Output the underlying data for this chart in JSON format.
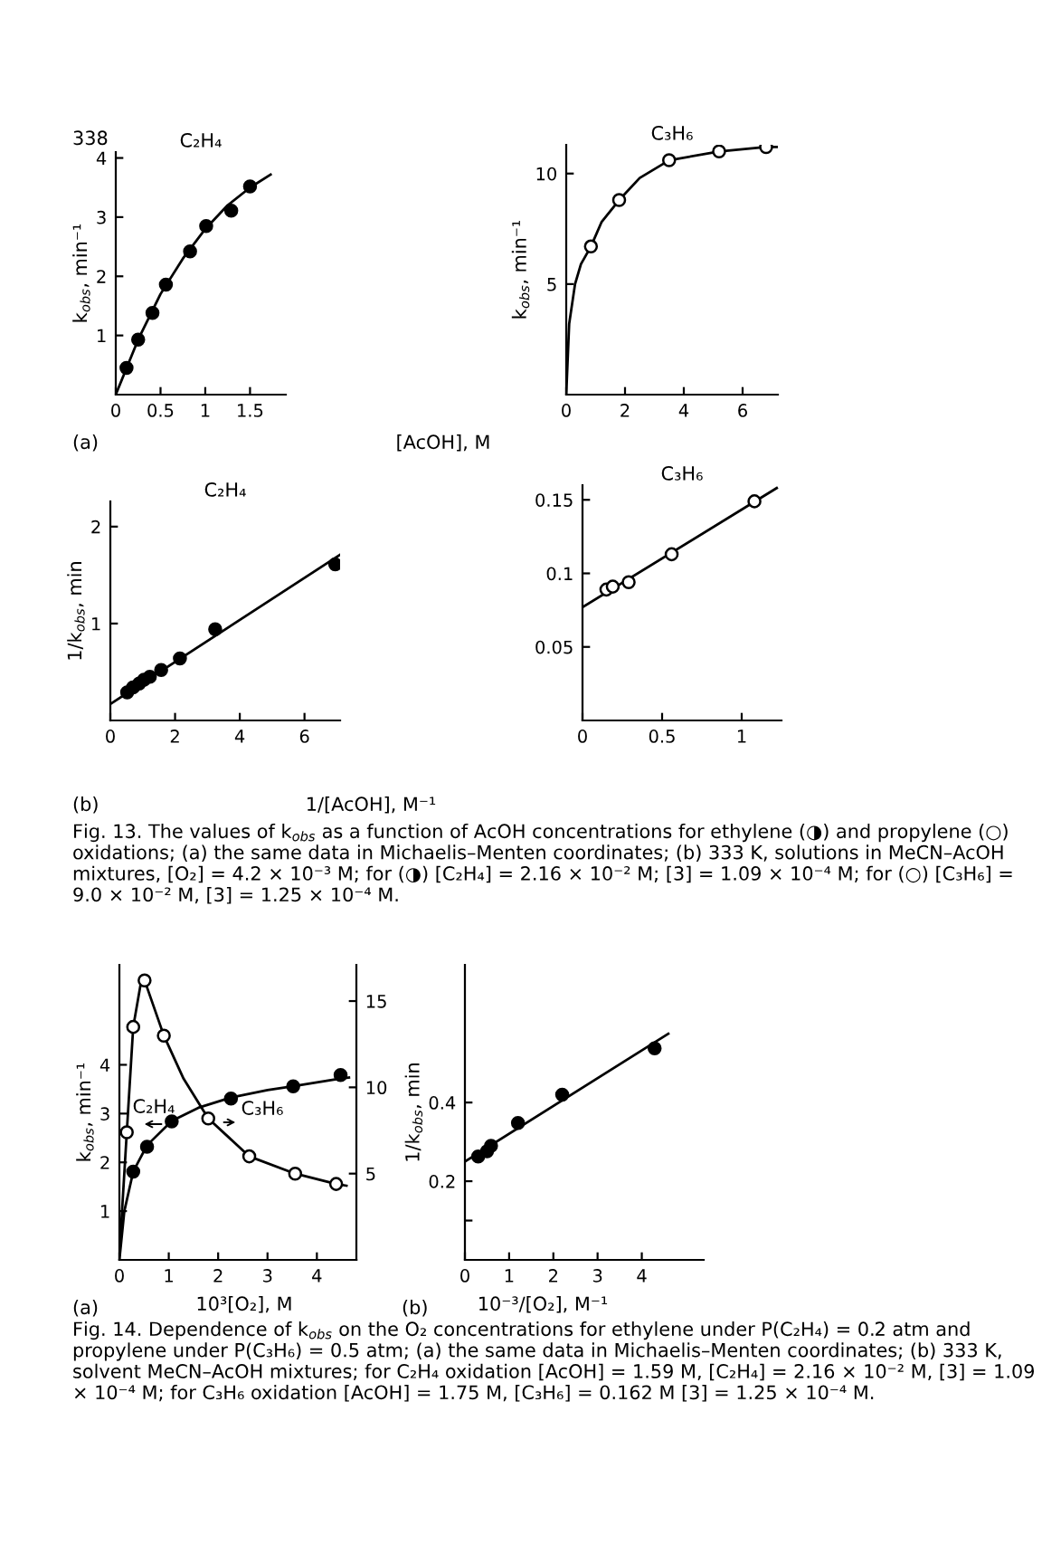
{
  "chart_data": [
    {
      "type": "scatter",
      "title": "C₂H₄",
      "xlabel": "[AcOH], M",
      "ylabel": "k$_{obs}$, min⁻¹",
      "xlim": [
        0,
        1.9
      ],
      "ylim": [
        0,
        4.1
      ],
      "xticks": [
        0,
        0.5,
        1,
        1.5
      ],
      "yticks": [
        1,
        2,
        3,
        4
      ],
      "series": [
        {
          "type": "line",
          "color": "#000000",
          "x": [
            0,
            0.25,
            0.5,
            0.75,
            1.0,
            1.25,
            1.5,
            1.73
          ],
          "values": [
            0,
            0.93,
            1.7,
            2.3,
            2.8,
            3.2,
            3.5,
            3.72
          ]
        },
        {
          "marker": "circle",
          "color": "#000000",
          "x": [
            0.12,
            0.25,
            0.41,
            0.56,
            0.83,
            1.01,
            1.29,
            1.5
          ],
          "values": [
            0.45,
            0.93,
            1.38,
            1.86,
            2.42,
            2.85,
            3.11,
            3.52
          ]
        }
      ],
      "annotations": [
        "338",
        "(a)"
      ]
    },
    {
      "type": "scatter",
      "title": "C₃H₆",
      "ylabel": "k$_{obs}$, min⁻¹",
      "xlim": [
        0,
        7.2
      ],
      "ylim": [
        0,
        11.3
      ],
      "xticks": [
        0,
        2,
        4,
        6
      ],
      "yticks": [
        5,
        10
      ],
      "series": [
        {
          "type": "line",
          "color": "#000000",
          "x": [
            0,
            0.1,
            0.3,
            0.5,
            0.84,
            1.2,
            1.8,
            2.5,
            3.5,
            5.2,
            6.8,
            7.2
          ],
          "values": [
            0,
            3.2,
            5.0,
            5.9,
            6.7,
            7.8,
            8.8,
            9.8,
            10.6,
            11.0,
            11.2,
            11.2
          ]
        },
        {
          "marker": "circle",
          "color": "#ffffff",
          "x": [
            0.84,
            1.8,
            3.5,
            5.2,
            6.8
          ],
          "values": [
            6.7,
            8.8,
            10.6,
            11.0,
            11.2
          ]
        }
      ]
    },
    {
      "type": "scatter",
      "title": "C₂H₄",
      "xlabel": "1/[AcOH], M⁻¹",
      "ylabel": "1/k$_{obs}$, min",
      "xlim": [
        0,
        7.1
      ],
      "ylim": [
        0,
        2.26
      ],
      "xticks": [
        0,
        2,
        4,
        6
      ],
      "yticks": [
        1,
        2
      ],
      "series": [
        {
          "type": "line",
          "color": "#000000",
          "x": [
            0,
            7.1
          ],
          "values": [
            0.17,
            1.71
          ]
        },
        {
          "marker": "circle",
          "color": "#000000",
          "x": [
            0.52,
            0.7,
            0.89,
            1.04,
            1.22,
            1.57,
            2.15,
            3.24,
            6.95
          ],
          "values": [
            0.29,
            0.34,
            0.38,
            0.42,
            0.45,
            0.52,
            0.64,
            0.94,
            1.61
          ]
        }
      ],
      "annotations": [
        "(b)",
        "Fig. 13. The values of k$_{obs}$ as a function of AcOH concentrations for ethylene (◑) and propylene (○) oxidations; (a) the same data in Michaelis–Menten coordinates; (b) 333 K, solutions in MeCN–AcOH mixtures, [O₂] = 4.2 × 10⁻³ M; for (◑) [C₂H₄] = 2.16 × 10⁻² M; [3] = 1.09 × 10⁻⁴ M; for (○) [C₃H₆] = 9.0 × 10⁻² M, [3] = 1.25 × 10⁻⁴ M."
      ]
    },
    {
      "type": "scatter",
      "title": "C₃H₆",
      "xlim": [
        0,
        1.25
      ],
      "ylim": [
        0,
        0.16
      ],
      "xticks": [
        0,
        0.5,
        1
      ],
      "yticks": [
        0.05,
        0.1,
        0.15
      ],
      "series": [
        {
          "type": "line",
          "color": "#000000",
          "x": [
            0,
            1.22
          ],
          "values": [
            0.077,
            0.158
          ]
        },
        {
          "marker": "circle",
          "color": "#ffffff",
          "x": [
            0.15,
            0.19,
            0.29,
            0.56,
            1.08
          ],
          "values": [
            0.089,
            0.091,
            0.094,
            0.113,
            0.149
          ]
        }
      ]
    },
    {
      "type": "scatter",
      "xlabel": "10³[O₂], M",
      "ylabel": "k$_{obs}$, min⁻¹",
      "xlim": [
        0,
        4.8
      ],
      "ylim": [
        0,
        6.05
      ],
      "xticks": [
        0,
        1,
        2,
        3,
        4
      ],
      "yticks": [
        1,
        2,
        3,
        4
      ],
      "y2lim": [
        0,
        17.1
      ],
      "y2ticks": [
        5,
        10,
        15
      ],
      "series": [
        {
          "type": "line",
          "color": "#000000",
          "x": [
            0,
            0.1,
            0.28,
            0.56,
            1.06,
            1.6,
            2.26,
            3.0,
            3.52,
            4.48,
            4.65
          ],
          "values": [
            0,
            1.0,
            1.81,
            2.35,
            2.85,
            3.12,
            3.33,
            3.48,
            3.56,
            3.72,
            3.74
          ]
        },
        {
          "marker": "circle",
          "color": "#000000",
          "x": [
            0.28,
            0.56,
            1.06,
            2.26,
            3.52,
            4.48
          ],
          "values": [
            1.81,
            2.32,
            2.84,
            3.31,
            3.56,
            3.79
          ]
        },
        {
          "type": "line",
          "axis": "y2",
          "color": "#000000",
          "x": [
            0,
            0.15,
            0.28,
            0.45,
            0.51,
            0.9,
            1.3,
            1.8,
            2.63,
            3.56,
            4.39,
            4.6
          ],
          "values": [
            0.3,
            7.4,
            13.5,
            16.3,
            16.2,
            13.0,
            10.5,
            8.2,
            6.0,
            5.0,
            4.4,
            4.3
          ]
        },
        {
          "marker": "circle",
          "axis": "y2",
          "color": "#ffffff",
          "x": [
            0.15,
            0.28,
            0.51,
            0.9,
            1.8,
            2.63,
            3.56,
            4.39
          ],
          "values": [
            7.4,
            13.5,
            16.2,
            13.0,
            8.2,
            6.0,
            5.0,
            4.4
          ]
        }
      ],
      "annotations": [
        "C₂H₄",
        "C₃H₆",
        "(a)"
      ]
    },
    {
      "type": "scatter",
      "xlabel": "10⁻³/[O₂], M⁻¹",
      "ylabel": "1/k$_{obs}$, min",
      "xlim": [
        0,
        5.4
      ],
      "ylim": [
        0,
        0.75
      ],
      "xticks": [
        0,
        1,
        2,
        3,
        4
      ],
      "yticks": [
        {
          "value": 0.1,
          "label": null
        },
        0.2,
        0.4
      ],
      "series": [
        {
          "type": "line",
          "color": "#000000",
          "x": [
            0,
            4.6
          ],
          "values": [
            0.25,
            0.575
          ]
        },
        {
          "marker": "circle",
          "color": "#000000",
          "x": [
            0.3,
            0.5,
            0.59,
            1.2,
            2.2,
            4.29
          ],
          "values": [
            0.263,
            0.276,
            0.29,
            0.348,
            0.42,
            0.538
          ]
        }
      ],
      "annotations": [
        "(b)",
        "Fig. 14. Dependence of k$_{obs}$ on the O₂ concentrations for ethylene under P(C₂H₄) = 0.2 atm and propylene under P(C₃H₆) = 0.5 atm; (a) the same data in Michaelis–Menten coordinates; (b) 333 K, solvent MeCN–AcOH mixtures; for C₂H₄ oxidation [AcOH] = 1.59 M, [C₂H₄] = 2.16 × 10⁻² M, [3] = 1.09 × 10⁻⁴ M; for C₃H₆ oxidation [AcOH] = 1.75 M, [C₃H₆] = 0.162 M [3] = 1.25 × 10⁻⁴ M."
      ]
    }
  ]
}
